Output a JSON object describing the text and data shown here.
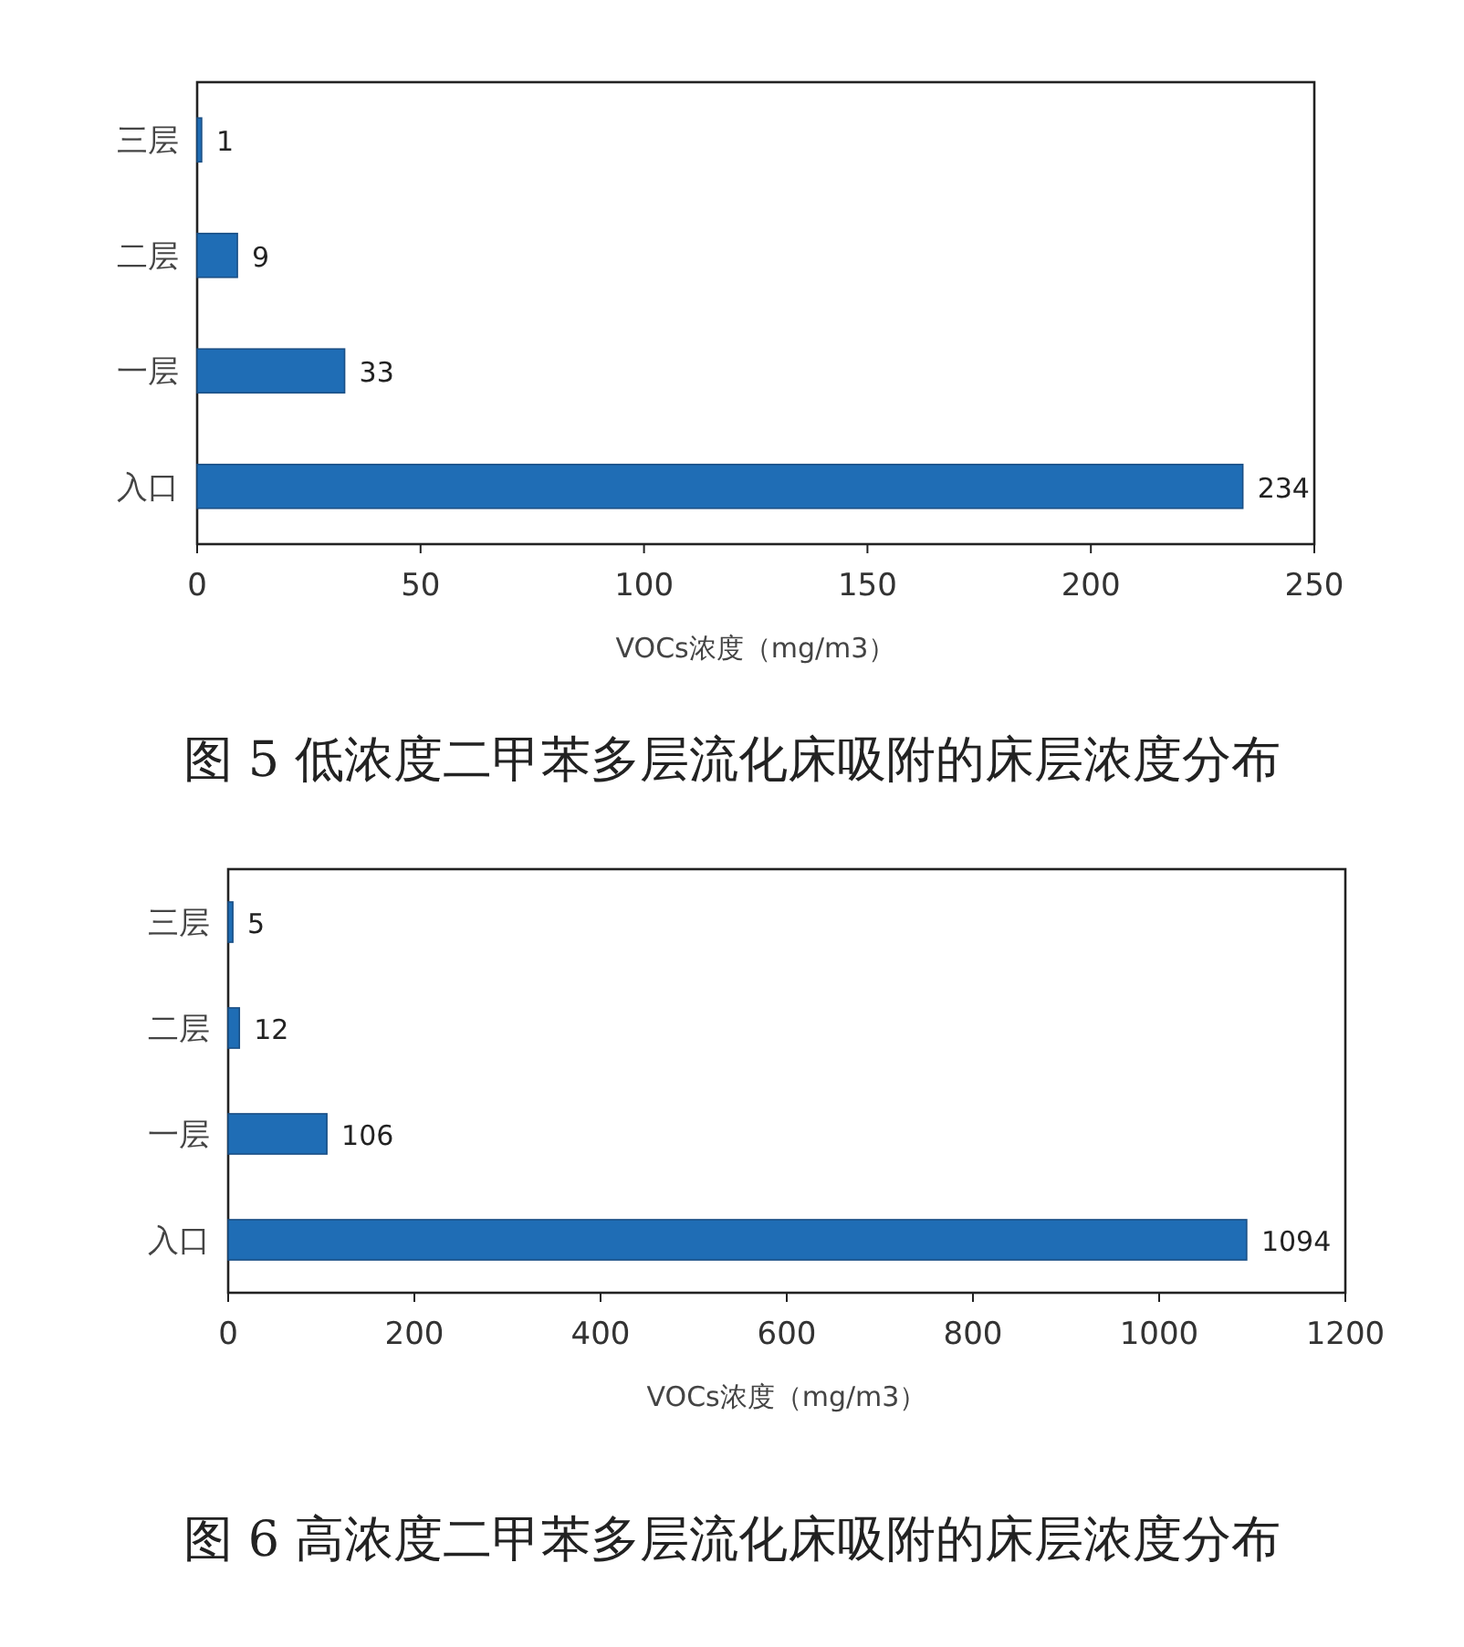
{
  "chart_data": [
    {
      "type": "bar",
      "orientation": "horizontal",
      "title": "图 5  低浓度二甲苯多层流化床吸附的床层浓度分布",
      "xlabel": "VOCs浓度（mg/m3）",
      "categories": [
        "三层",
        "二层",
        "一层",
        "入口"
      ],
      "values": [
        1,
        9,
        33,
        234
      ],
      "color": "#1f6db5",
      "xlim": [
        0,
        250
      ],
      "xticks": [
        0,
        50,
        100,
        150,
        200,
        250
      ],
      "data_labels": true
    },
    {
      "type": "bar",
      "orientation": "horizontal",
      "title": "图 6  高浓度二甲苯多层流化床吸附的床层浓度分布",
      "xlabel": "VOCs浓度（mg/m3）",
      "categories": [
        "三层",
        "二层",
        "一层",
        "入口"
      ],
      "values": [
        5,
        12,
        106,
        1094
      ],
      "color": "#1f6db5",
      "xlim": [
        0,
        1200
      ],
      "xticks": [
        0,
        200,
        400,
        600,
        800,
        1000,
        1200
      ],
      "data_labels": true
    }
  ]
}
